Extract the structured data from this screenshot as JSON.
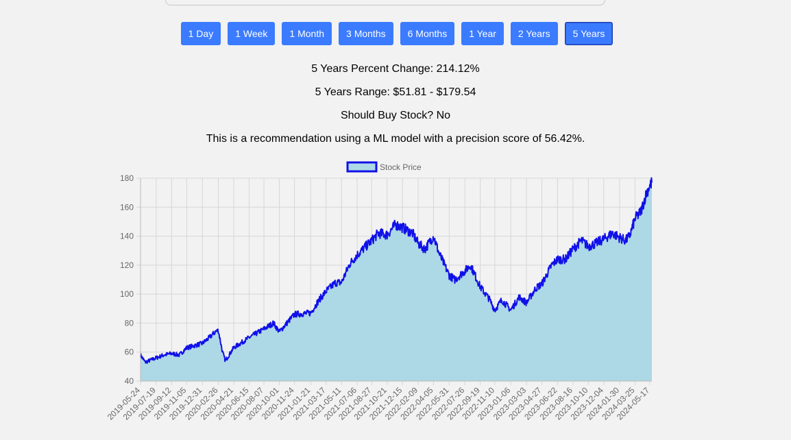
{
  "range_buttons": [
    {
      "label": "1 Day"
    },
    {
      "label": "1 Week"
    },
    {
      "label": "1 Month"
    },
    {
      "label": "3 Months"
    },
    {
      "label": "6 Months"
    },
    {
      "label": "1 Year"
    },
    {
      "label": "2 Years"
    },
    {
      "label": "5 Years",
      "active": true
    }
  ],
  "stats": {
    "percent_change": "5 Years Percent Change: 214.12%",
    "range": "5 Years Range: $51.81 - $179.54",
    "should_buy": "Should Buy Stock? No",
    "recommendation": "This is a recommendation using a ML model with a precision score of 56.42%."
  },
  "colors": {
    "button_bg": "#3b7bff",
    "line": "#1010e8",
    "fill": "#add8e6"
  },
  "chart_data": {
    "type": "area",
    "series": [
      {
        "name": "Stock Price"
      }
    ],
    "ylim": [
      40,
      180
    ],
    "yticks": [
      40,
      60,
      80,
      100,
      120,
      140,
      160,
      180
    ],
    "grid": true,
    "legend": "top",
    "xticks": [
      "2019-05-24",
      "2019-07-19",
      "2019-09-12",
      "2019-11-05",
      "2019-12-31",
      "2020-02-26",
      "2020-04-21",
      "2020-06-15",
      "2020-08-07",
      "2020-10-01",
      "2020-11-24",
      "2021-01-21",
      "2021-03-17",
      "2021-05-11",
      "2021-07-06",
      "2021-08-27",
      "2021-10-21",
      "2021-12-15",
      "2022-02-09",
      "2022-04-05",
      "2022-05-31",
      "2022-07-26",
      "2022-09-19",
      "2022-11-10",
      "2023-01-06",
      "2023-03-03",
      "2023-04-27",
      "2023-06-22",
      "2023-08-16",
      "2023-10-10",
      "2023-12-04",
      "2024-01-30",
      "2024-03-25",
      "2024-05-17"
    ],
    "points": [
      [
        "2019-05-24",
        58
      ],
      [
        "2019-06-10",
        53
      ],
      [
        "2019-07-19",
        56
      ],
      [
        "2019-08-15",
        58
      ],
      [
        "2019-09-12",
        59
      ],
      [
        "2019-10-10",
        58
      ],
      [
        "2019-11-05",
        63
      ],
      [
        "2019-12-31",
        66
      ],
      [
        "2020-01-25",
        70
      ],
      [
        "2020-02-15",
        74
      ],
      [
        "2020-02-26",
        75
      ],
      [
        "2020-03-12",
        60
      ],
      [
        "2020-03-22",
        54
      ],
      [
        "2020-04-21",
        63
      ],
      [
        "2020-06-15",
        70
      ],
      [
        "2020-08-07",
        76
      ],
      [
        "2020-09-10",
        80
      ],
      [
        "2020-10-01",
        74
      ],
      [
        "2020-11-24",
        86
      ],
      [
        "2021-01-21",
        87
      ],
      [
        "2021-02-20",
        96
      ],
      [
        "2021-03-17",
        102
      ],
      [
        "2021-04-20",
        108
      ],
      [
        "2021-05-11",
        108
      ],
      [
        "2021-06-10",
        121
      ],
      [
        "2021-07-06",
        127
      ],
      [
        "2021-08-27",
        137
      ],
      [
        "2021-09-20",
        142
      ],
      [
        "2021-10-21",
        141
      ],
      [
        "2021-11-20",
        148
      ],
      [
        "2021-12-15",
        146
      ],
      [
        "2022-01-20",
        142
      ],
      [
        "2022-02-09",
        135
      ],
      [
        "2022-03-05",
        131
      ],
      [
        "2022-04-05",
        140
      ],
      [
        "2022-04-25",
        128
      ],
      [
        "2022-05-31",
        113
      ],
      [
        "2022-06-20",
        110
      ],
      [
        "2022-07-26",
        116
      ],
      [
        "2022-08-15",
        120
      ],
      [
        "2022-09-19",
        105
      ],
      [
        "2022-10-20",
        97
      ],
      [
        "2022-11-10",
        89
      ],
      [
        "2022-12-05",
        96
      ],
      [
        "2023-01-06",
        89
      ],
      [
        "2023-02-05",
        98
      ],
      [
        "2023-03-03",
        94
      ],
      [
        "2023-04-05",
        104
      ],
      [
        "2023-04-27",
        107
      ],
      [
        "2023-06-01",
        120
      ],
      [
        "2023-06-22",
        124
      ],
      [
        "2023-07-20",
        124
      ],
      [
        "2023-08-16",
        131
      ],
      [
        "2023-09-15",
        137
      ],
      [
        "2023-10-10",
        133
      ],
      [
        "2023-11-05",
        135
      ],
      [
        "2023-12-04",
        138
      ],
      [
        "2024-01-05",
        142
      ],
      [
        "2024-01-30",
        139
      ],
      [
        "2024-02-20",
        137
      ],
      [
        "2024-03-05",
        140
      ],
      [
        "2024-03-25",
        152
      ],
      [
        "2024-04-15",
        157
      ],
      [
        "2024-05-05",
        170
      ],
      [
        "2024-05-17",
        175
      ],
      [
        "2024-05-24",
        177
      ]
    ]
  }
}
